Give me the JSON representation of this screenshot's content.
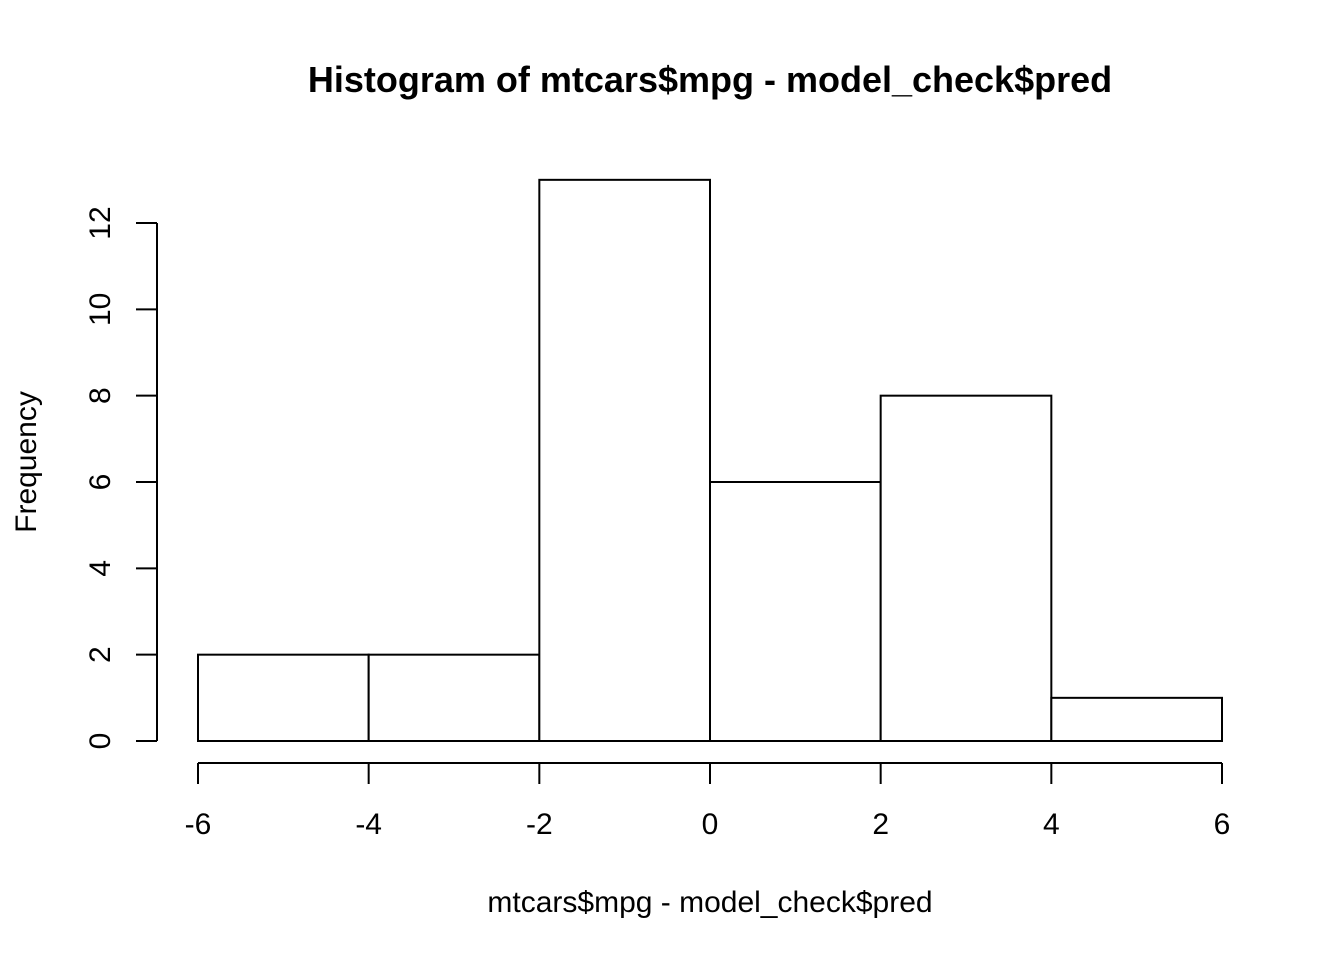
{
  "chart_data": {
    "type": "bar",
    "title": "Histogram of mtcars$mpg - model_check$pred",
    "xlabel": "mtcars$mpg - model_check$pred",
    "ylabel": "Frequency",
    "bins": [
      {
        "from": -6,
        "to": -4,
        "count": 2
      },
      {
        "from": -4,
        "to": -2,
        "count": 2
      },
      {
        "from": -2,
        "to": 0,
        "count": 13
      },
      {
        "from": 0,
        "to": 2,
        "count": 6
      },
      {
        "from": 2,
        "to": 4,
        "count": 8
      },
      {
        "from": 4,
        "to": 6,
        "count": 1
      }
    ],
    "xlim": [
      -6,
      6
    ],
    "ylim": [
      0,
      12
    ],
    "x_ticks": [
      "-6",
      "-4",
      "-2",
      "0",
      "2",
      "4",
      "6"
    ],
    "y_ticks": [
      "0",
      "2",
      "4",
      "6",
      "8",
      "10",
      "12"
    ],
    "grid": false,
    "legend": "none",
    "colors": {
      "bar_fill": "#ffffff",
      "bar_stroke": "#000000"
    }
  }
}
